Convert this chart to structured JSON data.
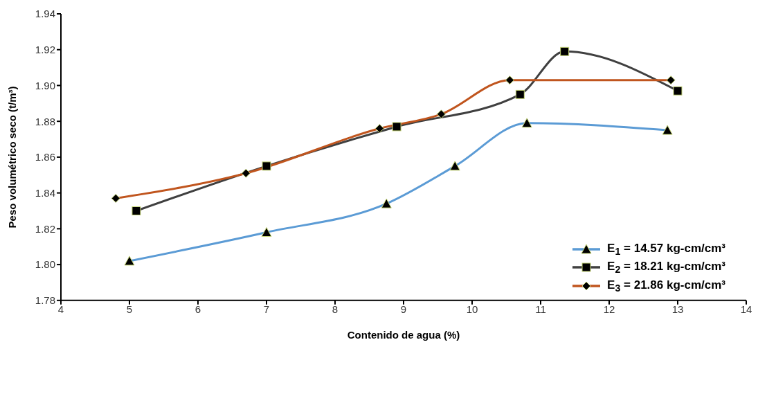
{
  "chart_data": {
    "type": "line",
    "xlabel": "Contenido de agua (%)",
    "ylabel": "Peso volumétrico seco (t/m³)",
    "xlim": [
      4,
      14
    ],
    "xticks": [
      4,
      5,
      6,
      7,
      8,
      9,
      10,
      11,
      12,
      13,
      14
    ],
    "ylim": [
      1.78,
      1.94
    ],
    "yticks": [
      1.78,
      {
        "value": 1.8,
        "label": "1.80"
      },
      1.82,
      1.84,
      1.86,
      1.88,
      {
        "value": 1.9,
        "label": "1.90"
      },
      1.92,
      1.94
    ],
    "grid": false,
    "legend": "bottom right",
    "line_style": "solid",
    "series": [
      {
        "name": "E$_{1}$ = 14.57 kg-cm/cm³",
        "color": "#5b9bd5",
        "marker": "triangle",
        "x": [
          5.0,
          7.0,
          8.75,
          9.75,
          10.8,
          12.85
        ],
        "values": [
          1.802,
          1.818,
          1.834,
          1.855,
          1.879,
          1.875
        ]
      },
      {
        "name": "E$_{2}$ = 18.21 kg-cm/cm³",
        "color": "#404040",
        "marker": "square",
        "x": [
          5.1,
          7.0,
          8.9,
          10.7,
          11.35,
          13.0
        ],
        "values": [
          1.83,
          1.855,
          1.877,
          1.895,
          1.919,
          1.897
        ]
      },
      {
        "name": "E$_{3}$ = 21.86 kg-cm/cm³",
        "color": "#c0551e",
        "marker": "diamond",
        "x": [
          4.8,
          6.7,
          8.65,
          9.55,
          10.55,
          12.9
        ],
        "values": [
          1.837,
          1.851,
          1.876,
          1.884,
          1.903,
          1.903
        ]
      }
    ]
  }
}
